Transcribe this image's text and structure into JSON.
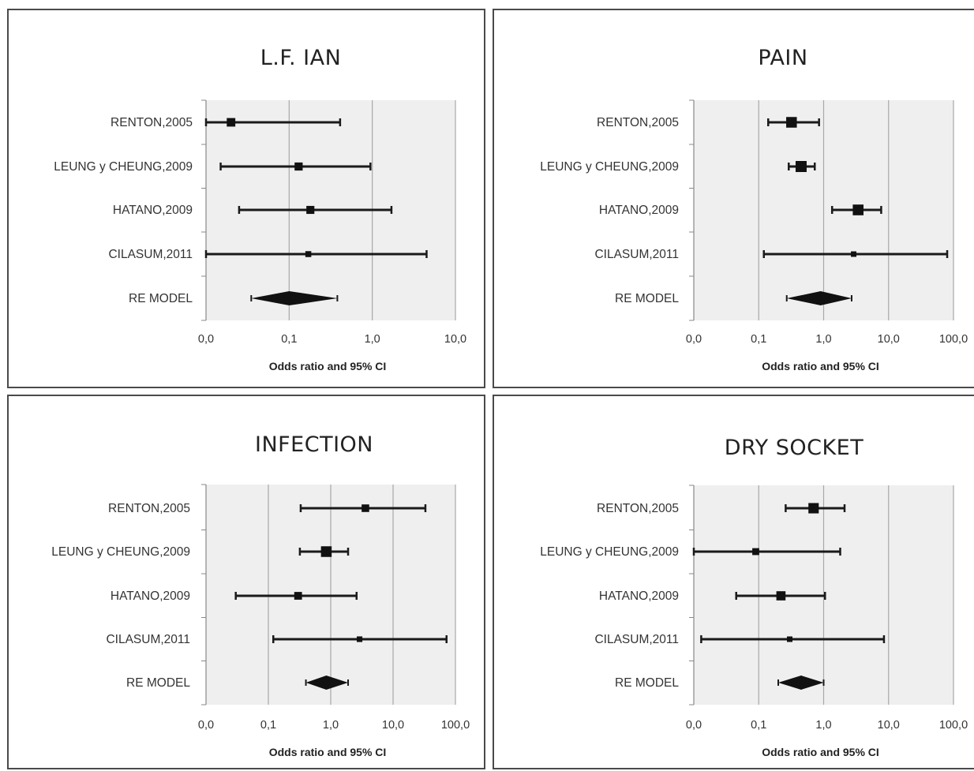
{
  "chart_data": [
    {
      "type": "forest",
      "title": "L.F. IAN",
      "xlabel": "Odds ratio and 95% CI",
      "x_scale": "log",
      "xlim": [
        0.01,
        10
      ],
      "x_ticks": [
        {
          "value": 0.01,
          "label": "0,0"
        },
        {
          "value": 0.1,
          "label": "0,1"
        },
        {
          "value": 1,
          "label": "1,0"
        },
        {
          "value": 10,
          "label": "10,0"
        }
      ],
      "studies": [
        {
          "name": "RENTON,2005",
          "or": 0.02,
          "lower": 0.01,
          "upper": 0.41
        },
        {
          "name": "LEUNG y CHEUNG,2009",
          "or": 0.13,
          "lower": 0.015,
          "upper": 0.95
        },
        {
          "name": "HATANO,2009",
          "or": 0.18,
          "lower": 0.025,
          "upper": 1.7
        },
        {
          "name": "CILASUM,2011",
          "or": 0.17,
          "lower": 0.01,
          "upper": 4.5
        }
      ],
      "summary": {
        "name": "RE MODEL",
        "or": 0.1,
        "lower": 0.035,
        "upper": 0.38
      }
    },
    {
      "type": "forest",
      "title": "PAIN",
      "xlabel": "Odds ratio and 95% CI",
      "x_scale": "log",
      "xlim": [
        0.01,
        100
      ],
      "x_ticks": [
        {
          "value": 0.01,
          "label": "0,0"
        },
        {
          "value": 0.1,
          "label": "0,1"
        },
        {
          "value": 1,
          "label": "1,0"
        },
        {
          "value": 10,
          "label": "10,0"
        },
        {
          "value": 100,
          "label": "100,0"
        }
      ],
      "studies": [
        {
          "name": "RENTON,2005",
          "or": 0.32,
          "lower": 0.14,
          "upper": 0.85
        },
        {
          "name": "LEUNG y CHEUNG,2009",
          "or": 0.45,
          "lower": 0.29,
          "upper": 0.73
        },
        {
          "name": "HATANO,2009",
          "or": 3.4,
          "lower": 1.35,
          "upper": 7.7
        },
        {
          "name": "CILASUM,2011",
          "or": 2.9,
          "lower": 0.12,
          "upper": 80
        }
      ],
      "summary": {
        "name": "RE MODEL",
        "or": 0.9,
        "lower": 0.27,
        "upper": 2.7
      }
    },
    {
      "type": "forest",
      "title": "INFECTION",
      "xlabel": "Odds ratio and 95% CI",
      "x_scale": "log",
      "xlim": [
        0.01,
        100
      ],
      "x_ticks": [
        {
          "value": 0.01,
          "label": "0,0"
        },
        {
          "value": 0.1,
          "label": "0,1"
        },
        {
          "value": 1,
          "label": "1,0"
        },
        {
          "value": 10,
          "label": "10,0"
        },
        {
          "value": 100,
          "label": "100,0"
        }
      ],
      "studies": [
        {
          "name": "RENTON,2005",
          "or": 3.6,
          "lower": 0.33,
          "upper": 33
        },
        {
          "name": "LEUNG y CHEUNG,2009",
          "or": 0.85,
          "lower": 0.32,
          "upper": 1.9
        },
        {
          "name": "HATANO,2009",
          "or": 0.3,
          "lower": 0.03,
          "upper": 2.6
        },
        {
          "name": "CILASUM,2011",
          "or": 2.9,
          "lower": 0.12,
          "upper": 72
        }
      ],
      "summary": {
        "name": "RE MODEL",
        "or": 0.85,
        "lower": 0.4,
        "upper": 1.9
      }
    },
    {
      "type": "forest",
      "title": "DRY SOCKET",
      "xlabel": "Odds ratio and 95% CI",
      "x_scale": "log",
      "xlim": [
        0.01,
        100
      ],
      "x_ticks": [
        {
          "value": 0.01,
          "label": "0,0"
        },
        {
          "value": 0.1,
          "label": "0,1"
        },
        {
          "value": 1,
          "label": "1,0"
        },
        {
          "value": 10,
          "label": "10,0"
        },
        {
          "value": 100,
          "label": "100,0"
        }
      ],
      "studies": [
        {
          "name": "RENTON,2005",
          "or": 0.7,
          "lower": 0.26,
          "upper": 2.1
        },
        {
          "name": "LEUNG y CHEUNG,2009",
          "or": 0.09,
          "lower": 0.01,
          "upper": 1.8
        },
        {
          "name": "HATANO,2009",
          "or": 0.22,
          "lower": 0.045,
          "upper": 1.05
        },
        {
          "name": "CILASUM,2011",
          "or": 0.3,
          "lower": 0.013,
          "upper": 8.5
        }
      ],
      "summary": {
        "name": "RE MODEL",
        "or": 0.45,
        "lower": 0.2,
        "upper": 1.0
      }
    }
  ]
}
